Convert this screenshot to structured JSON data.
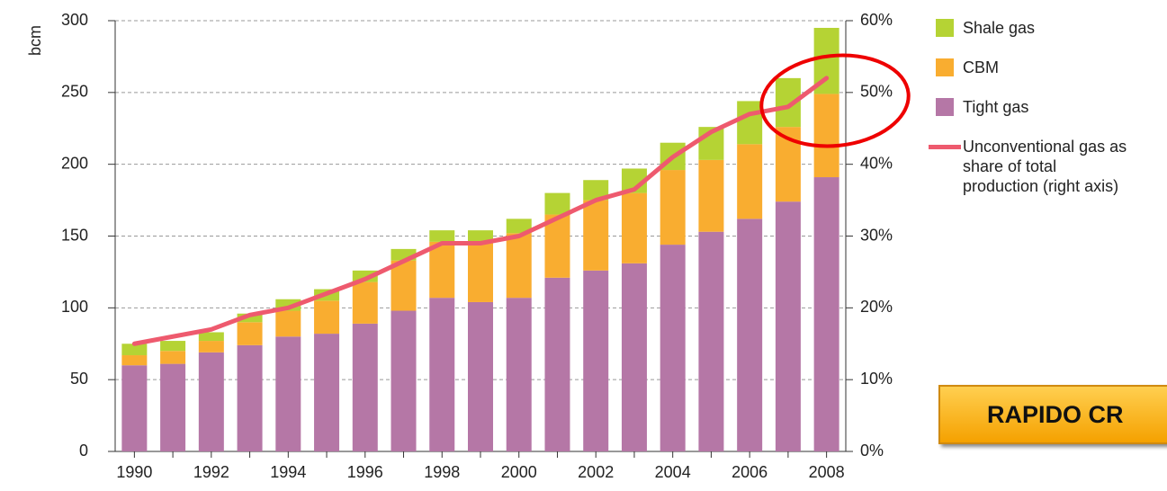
{
  "chart_data": {
    "type": "bar",
    "stacked": true,
    "ylabel": "bcm",
    "categories": [
      "1990",
      null,
      "1992",
      null,
      "1994",
      null,
      "1996",
      null,
      "1998",
      null,
      "2000",
      null,
      "2002",
      null,
      "2004",
      null,
      "2006",
      null,
      "2008"
    ],
    "series": [
      {
        "name": "Tight gas",
        "color": "#b577a6",
        "values": [
          60,
          61,
          69,
          74,
          80,
          82,
          89,
          98,
          107,
          104,
          107,
          121,
          126,
          131,
          144,
          153,
          162,
          174,
          191
        ]
      },
      {
        "name": "CBM",
        "color": "#f9ad30",
        "values": [
          7,
          9,
          8,
          16,
          18,
          23,
          29,
          35,
          39,
          41,
          45,
          44,
          49,
          49,
          52,
          50,
          52,
          52,
          58
        ]
      },
      {
        "name": "Shale gas",
        "color": "#b5d334",
        "values": [
          8,
          7,
          6,
          6,
          8,
          8,
          8,
          8,
          8,
          9,
          10,
          15,
          14,
          17,
          19,
          23,
          30,
          34,
          46
        ]
      },
      {
        "name": "Unconventional gas as share of total production (right axis)",
        "color": "#ee5a6e",
        "type": "line",
        "axis": "y2",
        "values": [
          15,
          16,
          17,
          19,
          20,
          22,
          24,
          26.5,
          29,
          29,
          30,
          32.5,
          35,
          36.5,
          41,
          44.5,
          47,
          48,
          52
        ]
      }
    ],
    "ylim": [
      0,
      300
    ],
    "yticks": [
      0,
      50,
      100,
      150,
      200,
      250,
      300
    ],
    "y2lim": [
      0,
      60
    ],
    "y2ticks": [
      {
        "value": 0,
        "label": "0%"
      },
      {
        "value": 10,
        "label": "10%"
      },
      {
        "value": 20,
        "label": "20%"
      },
      {
        "value": 30,
        "label": "30%"
      },
      {
        "value": 40,
        "label": "40%"
      },
      {
        "value": 50,
        "label": "50%"
      },
      {
        "value": 60,
        "label": "60%"
      }
    ],
    "grid": true
  },
  "button": "RAPIDO CR"
}
